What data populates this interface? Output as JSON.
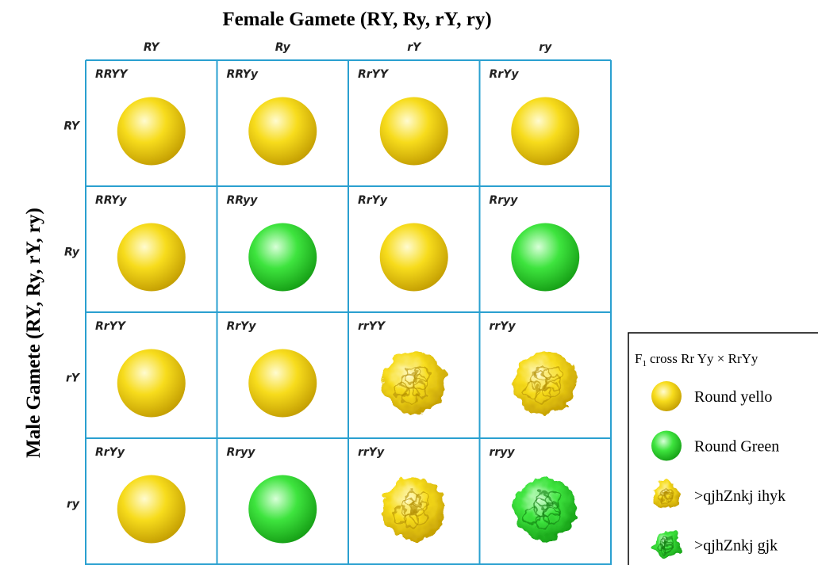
{
  "title": "Female Gamete (RY, Ry, rY, ry)",
  "side_label": "Male Gamete (RY, Ry, rY, ry)",
  "columns": [
    "RY",
    "Ry",
    "rY",
    "ry"
  ],
  "rows": [
    "RY",
    "Ry",
    "rY",
    "ry"
  ],
  "cells": [
    [
      "RRYY",
      "RRYy",
      "RrYY",
      "RrYy"
    ],
    [
      "RRYy",
      "RRyy",
      "RrYy",
      "Rryy"
    ],
    [
      "RrYY",
      "RrYy",
      "rrYY",
      "rrYy"
    ],
    [
      "RrYy",
      "Rryy",
      "rrYy",
      "rryy"
    ]
  ],
  "legend": {
    "title_prefix": "F",
    "title_subscript": "1",
    "title_text": "cross Rr Yy × RrYy",
    "items": [
      "Round yello",
      "Round Green",
      ">qjhZnkj ihyk",
      ">qjhZnkj gjk"
    ]
  }
}
